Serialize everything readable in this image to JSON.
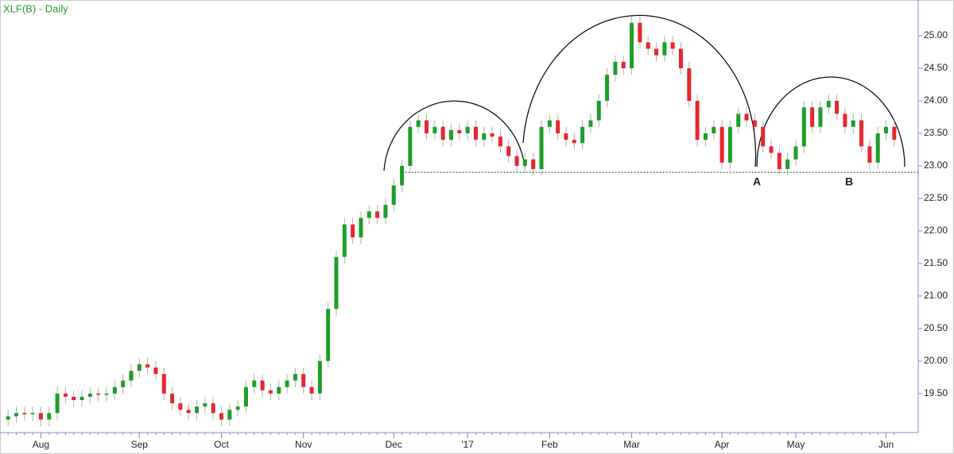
{
  "chart_data": {
    "type": "candlestick",
    "title": "XLF(B) - Daily",
    "categories": [
      null,
      null,
      null,
      null,
      "Aug",
      null,
      null,
      null,
      null,
      null,
      null,
      null,
      null,
      null,
      null,
      null,
      "Sep",
      null,
      null,
      null,
      null,
      null,
      null,
      null,
      null,
      null,
      "Oct",
      null,
      null,
      null,
      null,
      null,
      null,
      null,
      null,
      null,
      "Nov",
      null,
      null,
      null,
      null,
      null,
      null,
      null,
      null,
      null,
      null,
      "Dec",
      null,
      null,
      null,
      null,
      null,
      null,
      null,
      null,
      "'17",
      null,
      null,
      null,
      null,
      null,
      null,
      null,
      null,
      null,
      "Feb",
      null,
      null,
      null,
      null,
      null,
      null,
      null,
      null,
      null,
      "Mar",
      null,
      null,
      null,
      null,
      null,
      null,
      null,
      null,
      null,
      null,
      "Apr",
      null,
      null,
      null,
      null,
      null,
      null,
      null,
      null,
      "May",
      null,
      null,
      null,
      null,
      null,
      null,
      null,
      null,
      null,
      null,
      "Jun",
      null
    ],
    "open": [
      19.1,
      19.15,
      19.2,
      19.18,
      19.2,
      19.1,
      19.2,
      19.5,
      19.45,
      19.4,
      19.45,
      19.5,
      19.48,
      19.5,
      19.6,
      19.7,
      19.85,
      19.95,
      19.9,
      19.8,
      19.5,
      19.35,
      19.25,
      19.2,
      19.3,
      19.35,
      19.2,
      19.1,
      19.25,
      19.3,
      19.6,
      19.7,
      19.55,
      19.5,
      19.6,
      19.7,
      19.8,
      19.6,
      19.5,
      20.0,
      20.8,
      21.6,
      22.1,
      21.9,
      22.2,
      22.3,
      22.2,
      22.4,
      22.7,
      23.0,
      23.6,
      23.7,
      23.5,
      23.6,
      23.4,
      23.55,
      23.5,
      23.6,
      23.4,
      23.5,
      23.45,
      23.3,
      23.15,
      23.0,
      23.1,
      22.95,
      23.6,
      23.7,
      23.5,
      23.4,
      23.35,
      23.6,
      23.7,
      24.0,
      24.4,
      24.6,
      24.5,
      25.2,
      24.9,
      24.8,
      24.7,
      24.9,
      24.8,
      24.5,
      24.0,
      23.4,
      23.5,
      23.6,
      23.05,
      23.6,
      23.8,
      23.7,
      23.6,
      23.3,
      23.2,
      22.95,
      23.1,
      23.3,
      23.9,
      23.6,
      23.9,
      24.0,
      23.8,
      23.6,
      23.7,
      23.3,
      23.05,
      23.5,
      23.6
    ],
    "high": [
      19.25,
      19.3,
      19.3,
      19.3,
      19.3,
      19.3,
      19.6,
      19.6,
      19.55,
      19.55,
      19.6,
      19.6,
      19.6,
      19.7,
      19.8,
      19.95,
      20.05,
      20.05,
      20.0,
      19.9,
      19.6,
      19.45,
      19.35,
      19.4,
      19.45,
      19.45,
      19.3,
      19.35,
      19.4,
      19.7,
      19.8,
      19.8,
      19.65,
      19.7,
      19.8,
      19.9,
      19.9,
      19.7,
      20.1,
      20.9,
      21.7,
      22.2,
      22.2,
      22.3,
      22.4,
      22.4,
      22.5,
      22.8,
      23.1,
      23.7,
      23.8,
      23.8,
      23.7,
      23.7,
      23.65,
      23.65,
      23.7,
      23.7,
      23.6,
      23.6,
      23.55,
      23.4,
      23.25,
      23.2,
      23.2,
      23.7,
      23.8,
      23.8,
      23.6,
      23.5,
      23.7,
      23.8,
      24.1,
      24.5,
      24.7,
      24.7,
      25.3,
      25.3,
      25.0,
      24.9,
      25.0,
      25.0,
      24.9,
      24.6,
      24.1,
      23.6,
      23.7,
      23.7,
      23.7,
      23.9,
      23.9,
      23.8,
      23.7,
      23.4,
      23.3,
      23.2,
      23.4,
      24.0,
      24.0,
      24.0,
      24.1,
      24.1,
      23.9,
      23.8,
      23.8,
      23.4,
      23.6,
      23.7,
      23.7
    ],
    "low": [
      19.0,
      19.05,
      19.08,
      19.08,
      19.0,
      19.0,
      19.1,
      19.35,
      19.3,
      19.3,
      19.35,
      19.38,
      19.38,
      19.4,
      19.5,
      19.6,
      19.75,
      19.8,
      19.7,
      19.4,
      19.25,
      19.15,
      19.1,
      19.1,
      19.2,
      19.1,
      19.0,
      19.0,
      19.15,
      19.2,
      19.5,
      19.45,
      19.4,
      19.4,
      19.5,
      19.6,
      19.5,
      19.4,
      19.4,
      19.9,
      20.7,
      21.5,
      21.8,
      21.8,
      22.1,
      22.1,
      22.1,
      22.3,
      22.6,
      22.9,
      23.5,
      23.4,
      23.4,
      23.3,
      23.3,
      23.4,
      23.4,
      23.3,
      23.3,
      23.35,
      23.2,
      23.05,
      22.9,
      22.9,
      22.85,
      22.85,
      23.5,
      23.4,
      23.3,
      23.25,
      23.25,
      23.5,
      23.6,
      23.9,
      24.3,
      24.4,
      24.4,
      24.8,
      24.7,
      24.6,
      24.6,
      24.7,
      24.4,
      23.9,
      23.3,
      23.3,
      23.4,
      22.95,
      22.95,
      23.5,
      23.6,
      23.5,
      23.2,
      23.1,
      22.85,
      22.85,
      23.0,
      23.2,
      23.5,
      23.5,
      23.8,
      23.7,
      23.5,
      23.5,
      23.2,
      22.95,
      22.95,
      23.4,
      23.3
    ],
    "close": [
      19.15,
      19.2,
      19.18,
      19.2,
      19.1,
      19.2,
      19.5,
      19.45,
      19.4,
      19.45,
      19.5,
      19.48,
      19.5,
      19.6,
      19.7,
      19.85,
      19.95,
      19.9,
      19.8,
      19.5,
      19.35,
      19.25,
      19.2,
      19.3,
      19.35,
      19.2,
      19.1,
      19.25,
      19.3,
      19.6,
      19.7,
      19.55,
      19.5,
      19.6,
      19.7,
      19.8,
      19.6,
      19.5,
      20.0,
      20.8,
      21.6,
      22.1,
      21.9,
      22.2,
      22.3,
      22.2,
      22.4,
      22.7,
      23.0,
      23.6,
      23.7,
      23.5,
      23.6,
      23.4,
      23.55,
      23.5,
      23.6,
      23.4,
      23.5,
      23.45,
      23.3,
      23.15,
      23.0,
      23.1,
      22.95,
      23.6,
      23.7,
      23.5,
      23.4,
      23.35,
      23.6,
      23.7,
      24.0,
      24.4,
      24.6,
      24.5,
      25.2,
      24.9,
      24.8,
      24.7,
      24.9,
      24.8,
      24.5,
      24.0,
      23.4,
      23.5,
      23.6,
      23.05,
      23.6,
      23.8,
      23.7,
      23.6,
      23.3,
      23.2,
      22.95,
      23.1,
      23.3,
      23.9,
      23.6,
      23.9,
      24.0,
      23.8,
      23.6,
      23.7,
      23.3,
      23.05,
      23.5,
      23.6,
      23.4
    ],
    "up_color": "#1e9e28",
    "down_color": "#e8262c",
    "ylim": [
      18.9,
      25.55
    ],
    "yticks": [
      {
        "value": 19.5,
        "label": "19.50"
      },
      {
        "value": 20,
        "label": "20.00"
      },
      {
        "value": 20.5,
        "label": "20.50"
      },
      {
        "value": 21,
        "label": "21.00"
      },
      {
        "value": 21.5,
        "label": "21.50"
      },
      {
        "value": 22,
        "label": "22.00"
      },
      {
        "value": 22.5,
        "label": "22.50"
      },
      {
        "value": 23,
        "label": "23.00"
      },
      {
        "value": 23.5,
        "label": "23.50"
      },
      {
        "value": 24,
        "label": "24.00"
      },
      {
        "value": 24.5,
        "label": "24.50"
      },
      {
        "value": 25,
        "label": "25.00"
      }
    ],
    "support_level": 22.9,
    "annotations": [
      "A",
      "B"
    ]
  }
}
